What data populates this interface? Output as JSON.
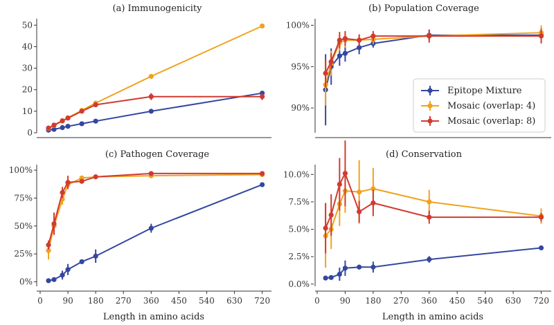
{
  "figure": {
    "legend": [
      {
        "label": "Epitope Mixture",
        "color": "#3446a0"
      },
      {
        "label": "Mosaic (overlap: 4)",
        "color": "#f0a21c"
      },
      {
        "label": "Mosaic (overlap: 8)",
        "color": "#d13a30"
      }
    ]
  },
  "chart_data": [
    {
      "id": "a",
      "type": "line",
      "title": "(a) Immunogenicity",
      "xlabel": "",
      "ylabel": "",
      "xlim": [
        0,
        750
      ],
      "ylim": [
        0,
        53
      ],
      "yticks": [
        0,
        10,
        20,
        30,
        40,
        50
      ],
      "ytick_labels": [
        "0",
        "10",
        "20",
        "30",
        "40",
        "50"
      ],
      "xticks": [],
      "xtick_labels": [],
      "series": [
        {
          "name": "Epitope Mixture",
          "color": "#3446a0",
          "x": [
            27,
            45,
            72,
            90,
            135,
            180,
            360,
            720
          ],
          "y": [
            1.2,
            1.6,
            2.4,
            3.0,
            4.2,
            5.4,
            10.0,
            18.4
          ],
          "err": [
            0,
            0,
            0,
            0,
            0,
            0,
            0,
            0
          ]
        },
        {
          "name": "Mosaic (overlap: 4)",
          "color": "#f0a21c",
          "x": [
            27,
            45,
            72,
            90,
            135,
            180,
            360,
            720
          ],
          "y": [
            2.0,
            3.4,
            5.4,
            7.0,
            10.4,
            13.8,
            26.2,
            49.6
          ],
          "err": [
            0,
            0,
            0,
            0,
            0,
            0,
            0,
            0
          ]
        },
        {
          "name": "Mosaic (overlap: 8)",
          "color": "#d13a30",
          "x": [
            27,
            45,
            72,
            90,
            135,
            180,
            360,
            720
          ],
          "y": [
            2.2,
            3.6,
            5.6,
            6.8,
            10.0,
            13.0,
            16.8,
            16.8
          ],
          "err": [
            0,
            0,
            0,
            0,
            0,
            0,
            1.6,
            1.6
          ]
        }
      ]
    },
    {
      "id": "b",
      "type": "line",
      "title": "(b) Population Coverage",
      "xlabel": "",
      "ylabel": "",
      "xlim": [
        0,
        750
      ],
      "ylim": [
        87,
        100.8
      ],
      "yticks": [
        90,
        95,
        100
      ],
      "ytick_labels": [
        "90%",
        "95%",
        "100%"
      ],
      "xticks": [],
      "xtick_labels": [],
      "series": [
        {
          "name": "Epitope Mixture",
          "color": "#3446a0",
          "x": [
            27,
            45,
            72,
            90,
            135,
            180,
            360,
            720
          ],
          "y": [
            92.2,
            95.0,
            96.3,
            96.6,
            97.3,
            97.8,
            98.8,
            98.8
          ],
          "err": [
            4.3,
            2.2,
            1.2,
            1.0,
            0.8,
            0.5,
            0.6,
            0.5
          ]
        },
        {
          "name": "Mosaic (overlap: 4)",
          "color": "#f0a21c",
          "x": [
            27,
            45,
            72,
            90,
            135,
            180,
            360,
            720
          ],
          "y": [
            92.8,
            95.4,
            97.9,
            98.2,
            98.2,
            98.3,
            98.7,
            99.1
          ],
          "err": [
            2.5,
            1.5,
            1.0,
            0.9,
            0.7,
            0.6,
            0.5,
            0.9
          ]
        },
        {
          "name": "Mosaic (overlap: 8)",
          "color": "#d13a30",
          "x": [
            27,
            45,
            72,
            90,
            135,
            180,
            360,
            720
          ],
          "y": [
            94.2,
            95.6,
            98.2,
            98.4,
            98.2,
            98.7,
            98.7,
            98.7
          ],
          "err": [
            1.7,
            1.0,
            1.0,
            0.9,
            0.7,
            0.6,
            0.8,
            0.9
          ]
        }
      ]
    },
    {
      "id": "c",
      "type": "line",
      "title": "(c) Pathogen Coverage",
      "xlabel": "Length in amino acids",
      "ylabel": "",
      "xlim": [
        0,
        750
      ],
      "ylim": [
        -4,
        105
      ],
      "yticks": [
        0,
        25,
        50,
        75,
        100
      ],
      "ytick_labels": [
        "0%",
        "25%",
        "50%",
        "75%",
        "100%"
      ],
      "xticks": [
        0,
        90,
        180,
        270,
        360,
        450,
        540,
        630,
        720
      ],
      "xtick_labels": [
        "0",
        "90",
        "180",
        "270",
        "360",
        "450",
        "540",
        "630",
        "720"
      ],
      "series": [
        {
          "name": "Epitope Mixture",
          "color": "#3446a0",
          "x": [
            27,
            45,
            72,
            90,
            135,
            180,
            360,
            720
          ],
          "y": [
            1,
            2,
            6,
            11,
            18,
            23,
            48,
            87
          ],
          "err": [
            1,
            2,
            4,
            5,
            2,
            6,
            4,
            1
          ]
        },
        {
          "name": "Mosaic (overlap: 4)",
          "color": "#f0a21c",
          "x": [
            27,
            45,
            72,
            90,
            135,
            180,
            360,
            720
          ],
          "y": [
            28,
            50,
            74,
            87,
            93,
            94,
            95,
            96
          ],
          "err": [
            8,
            6,
            5,
            3,
            2,
            2,
            1,
            1
          ]
        },
        {
          "name": "Mosaic (overlap: 8)",
          "color": "#d13a30",
          "x": [
            27,
            45,
            72,
            90,
            135,
            180,
            360,
            720
          ],
          "y": [
            33,
            52,
            80,
            89,
            90,
            94,
            97,
            97
          ],
          "err": [
            4,
            10,
            5,
            6,
            2,
            2,
            1,
            2
          ]
        }
      ]
    },
    {
      "id": "d",
      "type": "line",
      "title": "(d) Conservation",
      "xlabel": "Length in amino acids",
      "ylabel": "",
      "xlim": [
        0,
        750
      ],
      "ylim": [
        -0.2,
        10.9
      ],
      "yticks": [
        0,
        2.5,
        5,
        7.5,
        10
      ],
      "ytick_labels": [
        "0.0%",
        "2.5%",
        "5.0%",
        "7.5%",
        "10.0%"
      ],
      "xticks": [
        0,
        90,
        180,
        270,
        360,
        450,
        540,
        630,
        720
      ],
      "xtick_labels": [
        "0",
        "90",
        "180",
        "270",
        "360",
        "450",
        "540",
        "630",
        "720"
      ],
      "series": [
        {
          "name": "Epitope Mixture",
          "color": "#3446a0",
          "x": [
            27,
            45,
            72,
            90,
            135,
            180,
            360,
            720
          ],
          "y": [
            0.55,
            0.6,
            0.9,
            1.45,
            1.55,
            1.55,
            2.25,
            3.3
          ],
          "err": [
            0.1,
            0.2,
            0.6,
            0.7,
            0.2,
            0.5,
            0.3,
            0.1
          ]
        },
        {
          "name": "Mosaic (overlap: 4)",
          "color": "#f0a21c",
          "x": [
            27,
            45,
            72,
            90,
            135,
            180,
            360,
            720
          ],
          "y": [
            4.4,
            5.0,
            7.3,
            8.5,
            8.4,
            8.7,
            7.5,
            6.2
          ],
          "err": [
            2.9,
            1.8,
            2.0,
            2.0,
            2.9,
            1.9,
            1.1,
            0.7
          ]
        },
        {
          "name": "Mosaic (overlap: 8)",
          "color": "#d13a30",
          "x": [
            27,
            45,
            72,
            90,
            135,
            180,
            360,
            720
          ],
          "y": [
            5.1,
            6.3,
            9.1,
            10.1,
            6.6,
            7.4,
            6.1,
            6.1
          ],
          "err": [
            2.3,
            1.9,
            2.4,
            3.0,
            1.0,
            1.2,
            0.6,
            0.4
          ]
        }
      ]
    }
  ]
}
